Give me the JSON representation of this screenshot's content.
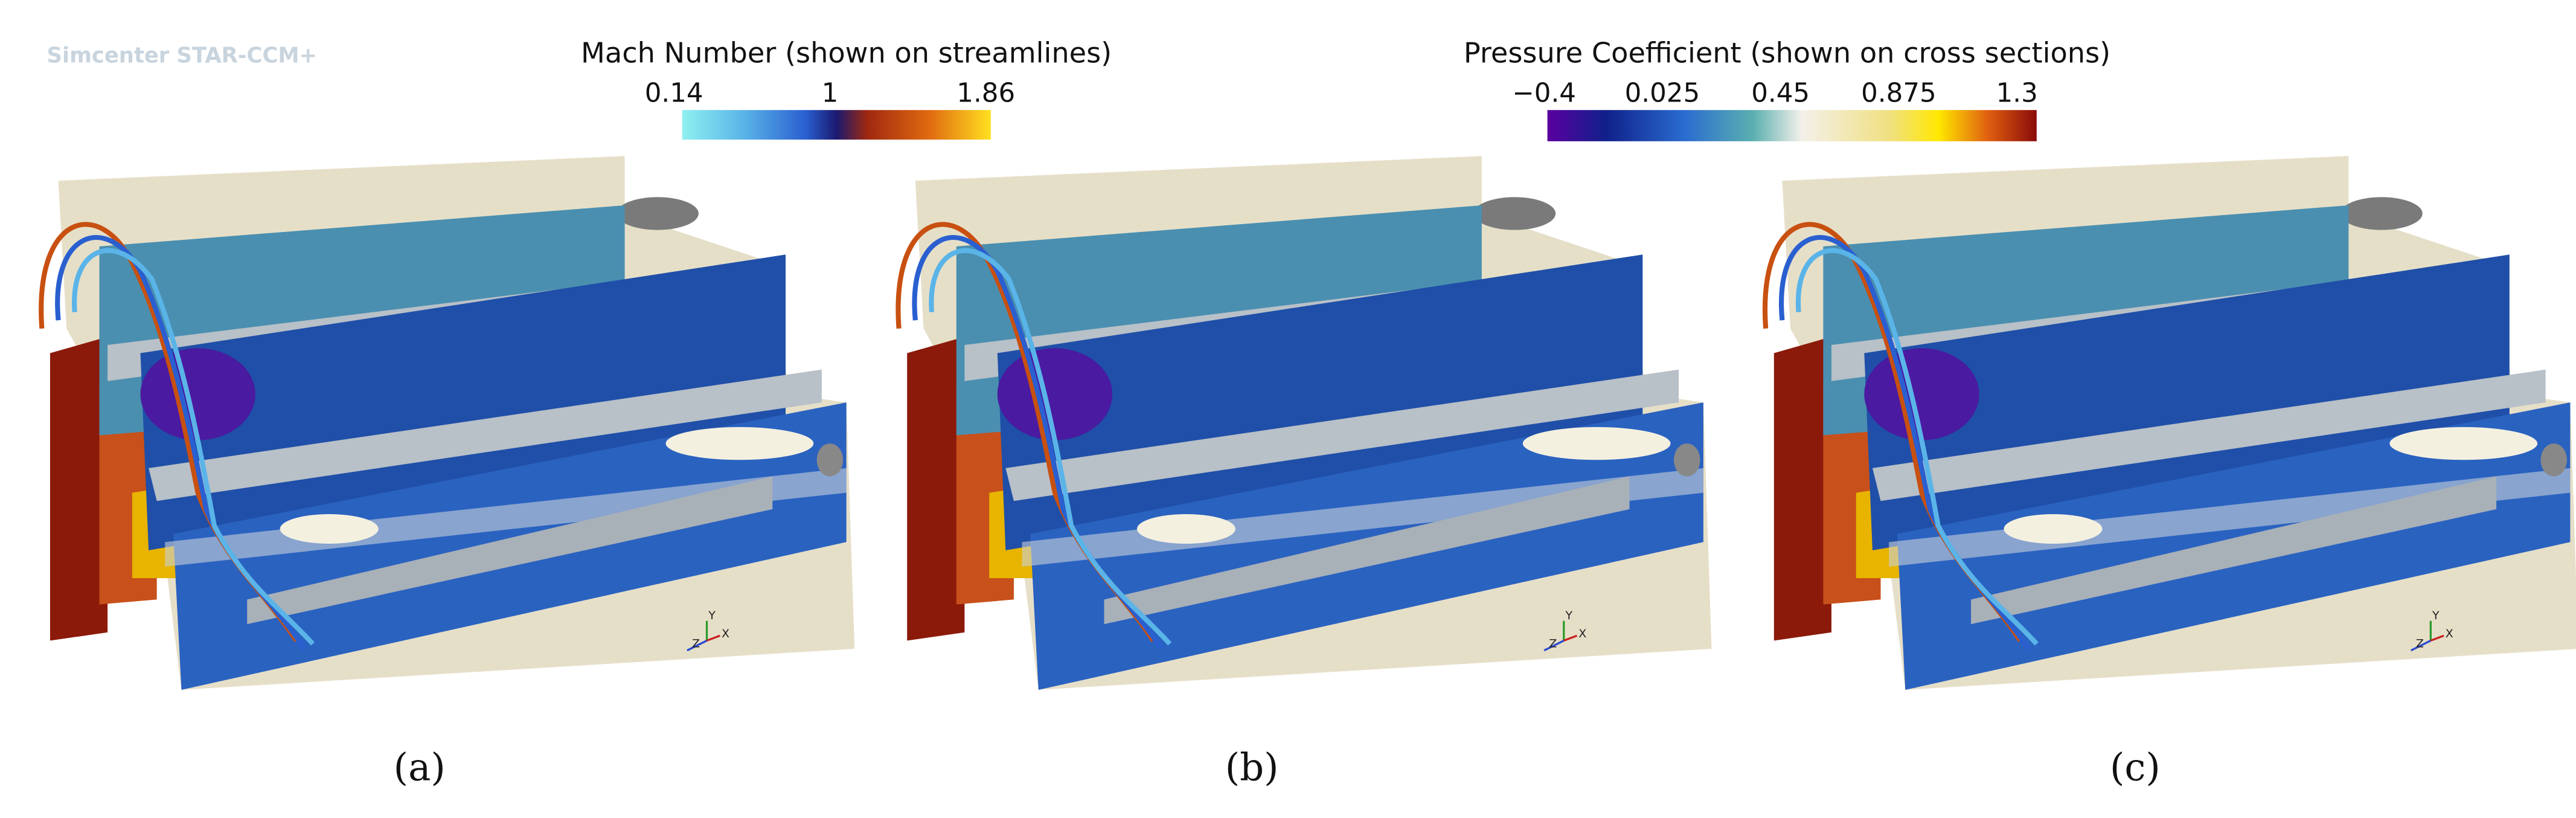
{
  "watermark": "Simcenter STAR-CCM+",
  "colorbars": [
    {
      "title": "Mach Number (shown on streamlines)",
      "ticks": [
        "0.14",
        "1",
        "1.86"
      ]
    },
    {
      "title": "Pressure Coefficient (shown on cross sections)",
      "ticks": [
        "−0.4",
        "0.025",
        "0.45",
        "0.875",
        "1.3"
      ]
    }
  ],
  "panels": [
    {
      "label": "(a)",
      "axes": [
        "Y",
        "Z",
        "X"
      ]
    },
    {
      "label": "(b)",
      "axes": [
        "Y",
        "Z",
        "X"
      ]
    },
    {
      "label": "(c)",
      "axes": [
        "Y",
        "Z",
        "X"
      ]
    }
  ]
}
